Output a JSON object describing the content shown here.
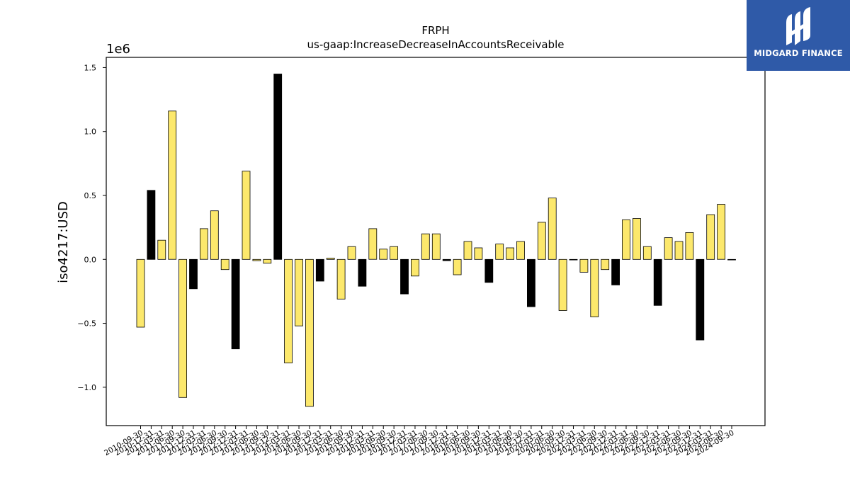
{
  "chart_data": {
    "type": "bar",
    "title": "FRPH",
    "subtitle": "us-gaap:IncreaseDecreaseInAccountsReceivable",
    "ylabel": "iso4217:USD",
    "xlabel": "",
    "offset_label": "1e6",
    "ylim": [
      -1.3,
      1.58
    ],
    "yticks": [
      -1.0,
      -0.5,
      0.0,
      0.5,
      1.0,
      1.5
    ],
    "ytick_labels": [
      "−1.0",
      "−0.5",
      "0.0",
      "0.5",
      "1.0",
      "1.5"
    ],
    "grid": false,
    "categories": [
      "2010-09-30",
      "2010-12-31",
      "2011-03-31",
      "2011-06-30",
      "2011-09-30",
      "2011-12-31",
      "2012-03-31",
      "2012-06-30",
      "2012-09-30",
      "2012-12-31",
      "2013-03-31",
      "2013-06-30",
      "2013-09-30",
      "2013-12-31",
      "2014-03-31",
      "2014-06-30",
      "2014-09-30",
      "2014-12-31",
      "2015-03-31",
      "2015-06-30",
      "2015-09-30",
      "2015-12-31",
      "2016-03-31",
      "2016-06-30",
      "2016-09-30",
      "2016-12-31",
      "2017-03-31",
      "2017-06-30",
      "2017-09-30",
      "2017-12-31",
      "2018-03-31",
      "2018-06-30",
      "2018-09-30",
      "2018-12-31",
      "2019-03-31",
      "2019-06-30",
      "2019-09-30",
      "2019-12-31",
      "2020-03-31",
      "2020-06-30",
      "2020-09-30",
      "2020-12-31",
      "2021-03-31",
      "2021-06-30",
      "2021-09-30",
      "2021-12-31",
      "2022-03-31",
      "2022-06-30",
      "2022-09-30",
      "2022-12-31",
      "2023-03-31",
      "2023-06-30",
      "2023-09-30",
      "2023-12-31",
      "2024-03-31",
      "2024-06-30",
      "2024-09-30"
    ],
    "values": [
      -0.53,
      0.54,
      0.15,
      1.16,
      -1.08,
      -0.23,
      0.24,
      0.38,
      -0.08,
      -0.7,
      0.69,
      -0.01,
      -0.03,
      1.45,
      -0.81,
      -0.52,
      -1.15,
      -0.17,
      0.01,
      -0.31,
      0.1,
      -0.21,
      0.24,
      0.08,
      0.1,
      -0.27,
      -0.13,
      0.2,
      0.2,
      -0.01,
      -0.12,
      0.14,
      0.09,
      -0.18,
      0.12,
      0.09,
      0.14,
      -0.37,
      0.29,
      0.48,
      -0.4,
      0.0,
      -0.1,
      -0.45,
      -0.08,
      -0.2,
      0.31,
      0.32,
      0.1,
      -0.36,
      0.17,
      0.14,
      0.21,
      -0.63,
      0.35,
      0.43,
      0.0
    ],
    "highlight": [
      false,
      true,
      false,
      false,
      false,
      true,
      false,
      false,
      false,
      true,
      false,
      false,
      false,
      true,
      false,
      false,
      false,
      true,
      false,
      false,
      false,
      true,
      false,
      false,
      false,
      true,
      false,
      false,
      false,
      true,
      false,
      false,
      false,
      true,
      false,
      false,
      false,
      true,
      false,
      false,
      false,
      true,
      false,
      false,
      false,
      true,
      false,
      false,
      false,
      true,
      false,
      false,
      false,
      true,
      false,
      false,
      false
    ],
    "colors": {
      "bar": "#fce86c",
      "highlight_bar": "#000000",
      "edge": "#000000",
      "axis": "#000000"
    }
  },
  "logo": {
    "text": "MIDGARD FINANCE",
    "bg_color": "#2f5aa8"
  }
}
